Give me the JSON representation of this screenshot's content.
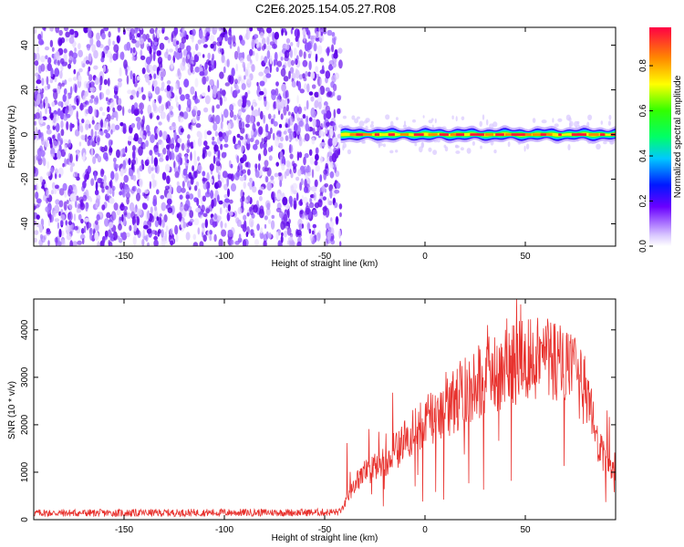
{
  "title": "C2E6.2025.154.05.27.R08",
  "colors": {
    "snr_line": "#e8322e",
    "noise": "#7a1cf0",
    "frame": "#000000"
  },
  "chart_data": [
    {
      "type": "heatmap",
      "title": "C2E6.2025.154.05.27.R08",
      "xlabel": "Height of straight line (km)",
      "ylabel": "Frequency (Hz)",
      "xlim": [
        -195,
        95
      ],
      "ylim": [
        -50,
        48
      ],
      "x_ticks": [
        -150,
        -100,
        -50,
        0,
        50
      ],
      "y_ticks": [
        -40,
        -20,
        0,
        20,
        40
      ],
      "grid": false,
      "noise_region_x": [
        -195,
        -42
      ],
      "signal": {
        "x_range": [
          -42,
          95
        ],
        "center_frequency": 0,
        "peak_amplitude": 0.95
      },
      "colorbar": {
        "label": "Normalized spectral amplitude",
        "range": [
          0,
          0.97
        ],
        "ticks": [
          "0.0",
          "0.2",
          "0.4",
          "0.6",
          "0.8"
        ]
      }
    },
    {
      "type": "line",
      "xlabel": "Height of straight line (km)",
      "ylabel": "SNR (10 * v/v)",
      "xlim": [
        -195,
        95
      ],
      "ylim": [
        0,
        4650
      ],
      "x_ticks": [
        -150,
        -100,
        -50,
        0,
        50
      ],
      "y_ticks": [
        0,
        1000,
        2000,
        3000,
        4000
      ],
      "grid": false,
      "series": [
        {
          "x": [
            -195,
            -150,
            -100,
            -60,
            -42,
            -38,
            -34,
            -30,
            -25,
            -20,
            -15,
            -10,
            -5,
            0,
            5,
            10,
            15,
            20,
            25,
            30,
            35,
            40,
            45,
            50,
            55,
            60,
            65,
            70,
            75,
            80,
            83,
            86,
            90,
            95
          ],
          "values": [
            140,
            140,
            150,
            150,
            160,
            500,
            800,
            1000,
            1100,
            1250,
            1400,
            1700,
            1850,
            2050,
            2200,
            2350,
            2500,
            2700,
            2900,
            3000,
            3100,
            3200,
            3300,
            3400,
            3450,
            3450,
            3350,
            3200,
            3000,
            2700,
            2200,
            1600,
            1200,
            1100
          ]
        }
      ]
    }
  ]
}
